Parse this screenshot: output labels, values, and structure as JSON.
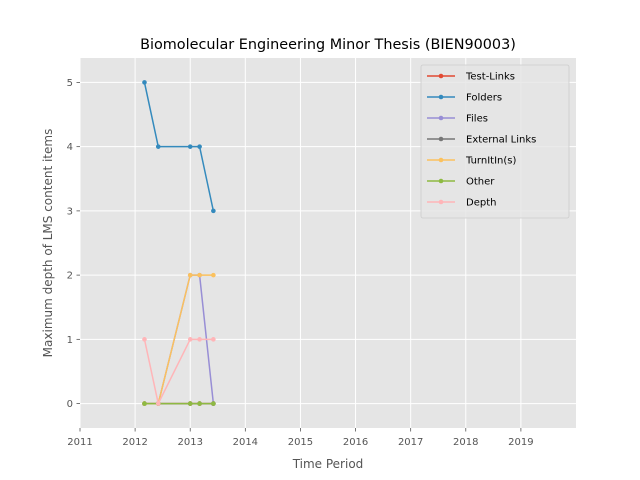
{
  "chart_data": {
    "type": "line",
    "title": "Biomolecular Engineering Minor Thesis (BIEN90003)",
    "xlabel": "Time Period",
    "ylabel": "Maximum depth of LMS content items",
    "xlim": [
      2011,
      2020
    ],
    "ylim": [
      -0.38,
      5.38
    ],
    "xticks": [
      "2011",
      "2012",
      "2013",
      "2014",
      "2015",
      "2016",
      "2017",
      "2018",
      "2019"
    ],
    "yticks": [
      "0",
      "1",
      "2",
      "3",
      "4",
      "5"
    ],
    "grid": true,
    "legend_position": "top-right",
    "x": [
      2012.17,
      2012.42,
      2013.0,
      2013.17,
      2013.42
    ],
    "series": [
      {
        "name": "Test-Links",
        "color": "#E24A33",
        "values": [
          0,
          0,
          0,
          0,
          0
        ]
      },
      {
        "name": "Folders",
        "color": "#348ABD",
        "values": [
          5,
          4,
          4,
          4,
          3
        ]
      },
      {
        "name": "Files",
        "color": "#988ED5",
        "values": [
          0,
          0,
          2,
          2,
          0
        ]
      },
      {
        "name": "External Links",
        "color": "#777777",
        "values": [
          0,
          0,
          0,
          0,
          0
        ]
      },
      {
        "name": "TurnItIn(s)",
        "color": "#FBC15E",
        "values": [
          0,
          0,
          2,
          2,
          2
        ]
      },
      {
        "name": "Other",
        "color": "#8EBA42",
        "values": [
          0,
          0,
          0,
          0,
          0
        ]
      },
      {
        "name": "Depth",
        "color": "#FFB5B8",
        "values": [
          1,
          0,
          1,
          1,
          1
        ]
      }
    ]
  }
}
